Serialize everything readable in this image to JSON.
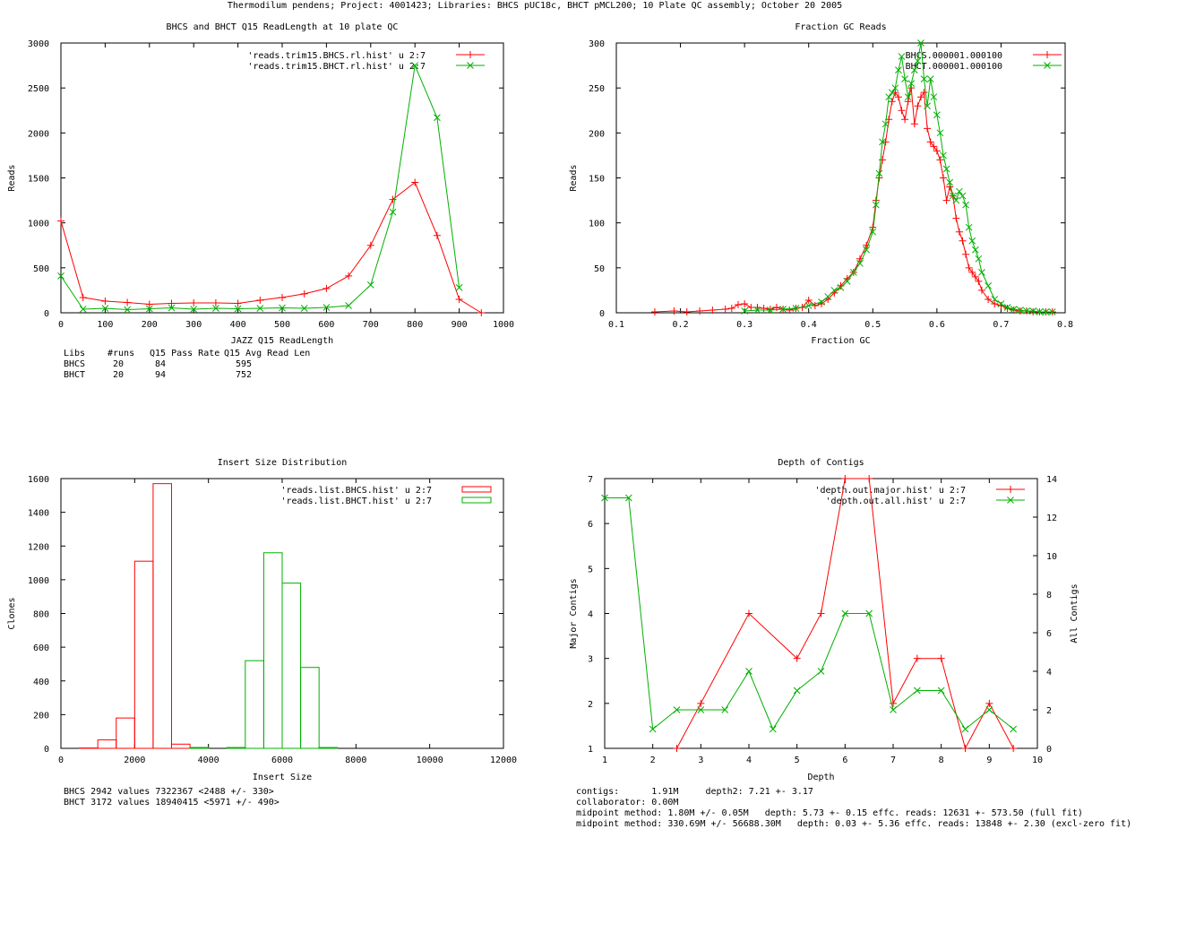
{
  "page_title": "Thermodilum pendens; Project: 4001423; Libraries: BHCS pUC18c, BHCT pMCL200; 10 Plate QC assembly; October 20 2005",
  "colors": {
    "red": "#ff0000",
    "green": "#00b000",
    "axis": "#000000"
  },
  "chart_data": [
    {
      "id": "readlength",
      "type": "line",
      "title": "BHCS and BHCT Q15 ReadLength at 10 plate QC",
      "xlabel": "JAZZ Q15 ReadLength",
      "ylabel": "Reads",
      "xlim": [
        0,
        1000
      ],
      "ylim": [
        0,
        3000
      ],
      "xticks": [
        0,
        100,
        200,
        300,
        400,
        500,
        600,
        700,
        800,
        900,
        1000
      ],
      "yticks": [
        0,
        500,
        1000,
        1500,
        2000,
        2500,
        3000
      ],
      "legend_position": "top-right",
      "series": [
        {
          "name": "'reads.trim15.BHCS.rl.hist' u 2:7",
          "color": "red",
          "marker": "plus",
          "x": [
            0,
            50,
            100,
            150,
            200,
            250,
            300,
            350,
            400,
            450,
            500,
            550,
            600,
            650,
            700,
            750,
            800,
            850,
            900,
            950
          ],
          "y": [
            1020,
            170,
            130,
            115,
            95,
            105,
            110,
            110,
            105,
            140,
            170,
            210,
            270,
            410,
            750,
            1260,
            1450,
            860,
            150,
            0
          ]
        },
        {
          "name": "'reads.trim15.BHCT.rl.hist' u 2:7",
          "color": "green",
          "marker": "cross",
          "x": [
            0,
            50,
            100,
            150,
            200,
            250,
            300,
            350,
            400,
            450,
            500,
            550,
            600,
            650,
            700,
            750,
            800,
            850,
            900
          ],
          "y": [
            410,
            40,
            50,
            35,
            45,
            55,
            40,
            50,
            45,
            50,
            55,
            50,
            60,
            80,
            310,
            1120,
            2750,
            2170,
            280
          ]
        }
      ],
      "stats_table": {
        "header": [
          "Libs",
          "#runs",
          "Q15 Pass Rate",
          "Q15 Avg Read Len"
        ],
        "rows": [
          [
            "BHCS",
            "20",
            "84",
            "595"
          ],
          [
            "BHCT",
            "20",
            "94",
            "752"
          ]
        ]
      }
    },
    {
      "id": "gc",
      "type": "line",
      "title": "Fraction GC Reads",
      "xlabel": "Fraction GC",
      "ylabel": "Reads",
      "xlim": [
        0.1,
        0.8
      ],
      "ylim": [
        0,
        300
      ],
      "xticks": [
        "0.1",
        "0.2",
        "0.3",
        "0.4",
        "0.5",
        "0.6",
        "0.7",
        "0.8"
      ],
      "yticks": [
        0,
        50,
        100,
        150,
        200,
        250,
        300
      ],
      "legend_position": "top-right",
      "series": [
        {
          "name": "BHCS.000001.000100",
          "color": "red",
          "marker": "plus",
          "x": [
            0.16,
            0.19,
            0.21,
            0.23,
            0.25,
            0.27,
            0.28,
            0.29,
            0.3,
            0.31,
            0.32,
            0.33,
            0.34,
            0.35,
            0.36,
            0.37,
            0.38,
            0.39,
            0.4,
            0.41,
            0.42,
            0.43,
            0.44,
            0.45,
            0.46,
            0.47,
            0.48,
            0.49,
            0.5,
            0.505,
            0.51,
            0.515,
            0.52,
            0.525,
            0.53,
            0.535,
            0.54,
            0.545,
            0.55,
            0.555,
            0.56,
            0.565,
            0.57,
            0.575,
            0.58,
            0.585,
            0.59,
            0.595,
            0.6,
            0.605,
            0.61,
            0.615,
            0.62,
            0.625,
            0.63,
            0.635,
            0.64,
            0.645,
            0.65,
            0.655,
            0.66,
            0.665,
            0.67,
            0.68,
            0.69,
            0.7,
            0.71,
            0.72,
            0.73,
            0.74,
            0.75,
            0.76,
            0.77,
            0.78
          ],
          "y": [
            1,
            2,
            1,
            2,
            3,
            4,
            5,
            9,
            10,
            6,
            6,
            5,
            4,
            6,
            4,
            3,
            5,
            6,
            14,
            8,
            10,
            15,
            22,
            30,
            38,
            45,
            60,
            75,
            95,
            125,
            150,
            170,
            190,
            215,
            235,
            245,
            240,
            225,
            215,
            235,
            250,
            210,
            230,
            240,
            245,
            205,
            190,
            185,
            180,
            170,
            150,
            125,
            140,
            130,
            105,
            90,
            80,
            65,
            50,
            45,
            40,
            35,
            25,
            15,
            10,
            8,
            5,
            3,
            2,
            2,
            1,
            1,
            1,
            1
          ]
        },
        {
          "name": "BHCT.000001.000100",
          "color": "green",
          "marker": "cross",
          "x": [
            0.3,
            0.32,
            0.34,
            0.36,
            0.38,
            0.4,
            0.42,
            0.43,
            0.44,
            0.45,
            0.46,
            0.47,
            0.48,
            0.49,
            0.5,
            0.505,
            0.51,
            0.515,
            0.52,
            0.525,
            0.53,
            0.535,
            0.54,
            0.545,
            0.55,
            0.555,
            0.56,
            0.565,
            0.57,
            0.575,
            0.58,
            0.585,
            0.59,
            0.595,
            0.6,
            0.605,
            0.61,
            0.615,
            0.62,
            0.625,
            0.63,
            0.635,
            0.64,
            0.645,
            0.65,
            0.655,
            0.66,
            0.665,
            0.67,
            0.68,
            0.69,
            0.7,
            0.71,
            0.72,
            0.73,
            0.74,
            0.75,
            0.76,
            0.77,
            0.78
          ],
          "y": [
            2,
            3,
            3,
            4,
            5,
            8,
            12,
            18,
            25,
            28,
            35,
            45,
            55,
            70,
            90,
            120,
            155,
            190,
            210,
            240,
            245,
            250,
            270,
            285,
            260,
            240,
            255,
            270,
            280,
            300,
            260,
            230,
            260,
            240,
            220,
            200,
            175,
            160,
            145,
            130,
            125,
            135,
            130,
            120,
            95,
            80,
            70,
            60,
            45,
            30,
            15,
            10,
            6,
            4,
            3,
            2,
            2,
            1,
            1,
            1
          ]
        }
      ]
    },
    {
      "id": "insert",
      "type": "bar",
      "title": "Insert Size Distribution",
      "xlabel": "Insert Size",
      "ylabel": "Clones",
      "xlim": [
        0,
        12000
      ],
      "ylim": [
        0,
        1600
      ],
      "xticks": [
        0,
        2000,
        4000,
        6000,
        8000,
        10000,
        12000
      ],
      "yticks": [
        0,
        200,
        400,
        600,
        800,
        1000,
        1200,
        1400,
        1600
      ],
      "bin_width": 500,
      "legend_position": "top-right",
      "series": [
        {
          "name": "'reads.list.BHCS.hist' u 2:7",
          "color": "red",
          "bin_centers": [
            250,
            750,
            1250,
            1750,
            2250,
            2750,
            3250,
            3750
          ],
          "values": [
            0,
            2,
            50,
            180,
            1110,
            1570,
            25,
            5
          ]
        },
        {
          "name": "'reads.list.BHCT.hist' u 2:7",
          "color": "green",
          "bin_centers": [
            3750,
            4250,
            4750,
            5250,
            5750,
            6250,
            6750,
            7250
          ],
          "values": [
            5,
            0,
            5,
            520,
            1160,
            980,
            480,
            5
          ]
        }
      ],
      "stats": [
        "BHCS 2942 values 7322367 <2488 +/- 330>",
        "BHCT 3172 values 18940415 <5971 +/- 490>"
      ]
    },
    {
      "id": "depth",
      "type": "line",
      "title": "Depth of Contigs",
      "xlabel": "Depth",
      "ylabel": "Major Contigs",
      "y2label": "All Contigs",
      "xlim": [
        1,
        10
      ],
      "ylim": [
        1,
        7
      ],
      "y2lim": [
        0,
        14
      ],
      "xticks": [
        1,
        2,
        3,
        4,
        5,
        6,
        7,
        8,
        9,
        10
      ],
      "yticks": [
        1,
        2,
        3,
        4,
        5,
        6,
        7
      ],
      "y2ticks": [
        0,
        2,
        4,
        6,
        8,
        10,
        12,
        14
      ],
      "legend_position": "top-right",
      "series": [
        {
          "name": "'depth.out.major.hist' u 2:7",
          "color": "red",
          "marker": "plus",
          "axis": "y",
          "x": [
            2.5,
            3,
            4,
            5,
            5.5,
            6,
            6.5,
            7,
            7.5,
            8,
            8.5,
            9,
            9.5
          ],
          "y": [
            1,
            2,
            4,
            3,
            4,
            7,
            7,
            2,
            3,
            3,
            1,
            2,
            1
          ]
        },
        {
          "name": "'depth.out.all.hist' u 2:7",
          "color": "green",
          "marker": "cross",
          "axis": "y2",
          "x": [
            1,
            1.5,
            2,
            2.5,
            3,
            3.5,
            4,
            4.5,
            5,
            5.5,
            6,
            6.5,
            7,
            7.5,
            8,
            8.5,
            9,
            9.5
          ],
          "y": [
            13,
            13,
            1,
            2,
            2,
            2,
            4,
            1,
            3,
            4,
            7,
            7,
            2,
            3,
            3,
            1,
            2,
            1
          ]
        }
      ],
      "stats": [
        "contigs:      1.91M     depth2: 7.21 +- 3.17",
        "collaborator: 0.00M",
        "midpoint method: 1.80M +/- 0.05M   depth: 5.73 +- 0.15 effc. reads: 12631 +- 573.50 (full fit)",
        "midpoint method: 330.69M +/- 56688.30M   depth: 0.03 +- 5.36 effc. reads: 13848 +- 2.30 (excl-zero fit)"
      ]
    }
  ]
}
